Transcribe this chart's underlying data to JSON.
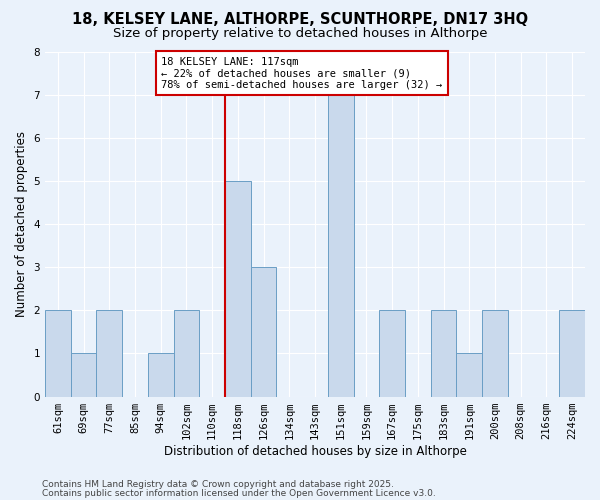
{
  "title": "18, KELSEY LANE, ALTHORPE, SCUNTHORPE, DN17 3HQ",
  "subtitle": "Size of property relative to detached houses in Althorpe",
  "xlabel": "Distribution of detached houses by size in Althorpe",
  "ylabel": "Number of detached properties",
  "footnote1": "Contains HM Land Registry data © Crown copyright and database right 2025.",
  "footnote2": "Contains public sector information licensed under the Open Government Licence v3.0.",
  "bin_labels": [
    "61sqm",
    "69sqm",
    "77sqm",
    "85sqm",
    "94sqm",
    "102sqm",
    "110sqm",
    "118sqm",
    "126sqm",
    "134sqm",
    "143sqm",
    "151sqm",
    "159sqm",
    "167sqm",
    "175sqm",
    "183sqm",
    "191sqm",
    "200sqm",
    "208sqm",
    "216sqm",
    "224sqm"
  ],
  "bar_heights": [
    2,
    1,
    2,
    0,
    1,
    2,
    0,
    5,
    3,
    0,
    0,
    7,
    0,
    2,
    0,
    2,
    1,
    2,
    0,
    0,
    2
  ],
  "bar_color": "#c9d9ec",
  "bar_edge_color": "#6a9ec5",
  "vline_color": "#cc0000",
  "vline_x": 6.5,
  "annotation_line1": "18 KELSEY LANE: 117sqm",
  "annotation_line2": "← 22% of detached houses are smaller (9)",
  "annotation_line3": "78% of semi-detached houses are larger (32) →",
  "annotation_box_facecolor": "#ffffff",
  "annotation_box_edgecolor": "#cc0000",
  "ylim": [
    0,
    8
  ],
  "yticks": [
    0,
    1,
    2,
    3,
    4,
    5,
    6,
    7,
    8
  ],
  "bg_color": "#eaf2fb",
  "grid_color": "#ffffff",
  "title_fontsize": 10.5,
  "subtitle_fontsize": 9.5,
  "axis_label_fontsize": 8.5,
  "tick_fontsize": 7.5,
  "annotation_fontsize": 7.5,
  "footnote_fontsize": 6.5
}
